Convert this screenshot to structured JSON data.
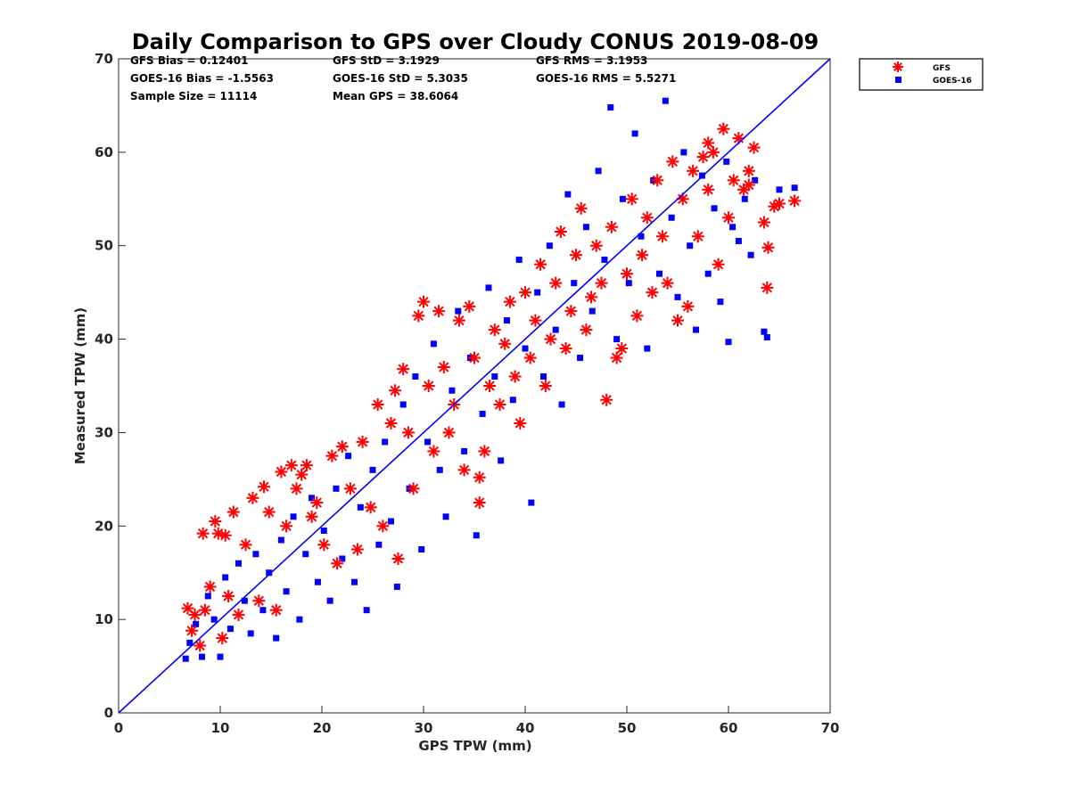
{
  "chart_data": {
    "type": "scatter",
    "title": "Daily Comparison to GPS over Cloudy CONUS 2019-08-09",
    "xlabel": "GPS TPW (mm)",
    "ylabel": "Measured TPW (mm)",
    "xlim": [
      0,
      70
    ],
    "ylim": [
      0,
      70
    ],
    "xticks": [
      0,
      10,
      20,
      30,
      40,
      50,
      60,
      70
    ],
    "yticks": [
      0,
      10,
      20,
      30,
      40,
      50,
      60,
      70
    ],
    "grid": false,
    "legend_position": "outside top-right",
    "reference_line": {
      "x": [
        0,
        70
      ],
      "y": [
        0,
        70
      ],
      "color": "#0000ff"
    },
    "stats": [
      "GFS Bias = 0.12401",
      "GFS StD = 3.1929",
      "GFS RMS = 3.1953",
      "GOES-16 Bias = -1.5563",
      "GOES-16 StD = 5.3035",
      "GOES-16 RMS = 5.5271",
      "Sample Size = 11114",
      "Mean GPS = 38.6064"
    ],
    "series": [
      {
        "name": "GFS",
        "marker": "asterisk",
        "color": "#ff0000",
        "points": [
          [
            6.8,
            11.2
          ],
          [
            7.2,
            8.8
          ],
          [
            7.5,
            10.5
          ],
          [
            8.0,
            7.2
          ],
          [
            8.3,
            19.2
          ],
          [
            8.5,
            11.0
          ],
          [
            9.0,
            13.5
          ],
          [
            9.5,
            20.5
          ],
          [
            9.8,
            19.2
          ],
          [
            10.2,
            8.0
          ],
          [
            10.5,
            19.0
          ],
          [
            10.8,
            12.5
          ],
          [
            11.3,
            21.5
          ],
          [
            11.8,
            10.5
          ],
          [
            12.5,
            18.0
          ],
          [
            13.2,
            23.0
          ],
          [
            13.8,
            12.0
          ],
          [
            14.3,
            24.2
          ],
          [
            14.8,
            21.5
          ],
          [
            15.5,
            11.0
          ],
          [
            16.0,
            25.8
          ],
          [
            16.5,
            20.0
          ],
          [
            17.0,
            26.5
          ],
          [
            17.5,
            24.0
          ],
          [
            18.0,
            25.5
          ],
          [
            18.5,
            26.5
          ],
          [
            19.0,
            21.0
          ],
          [
            19.5,
            22.5
          ],
          [
            20.2,
            18.0
          ],
          [
            21.0,
            27.5
          ],
          [
            21.5,
            16.0
          ],
          [
            22.0,
            28.5
          ],
          [
            22.8,
            24.0
          ],
          [
            23.5,
            17.5
          ],
          [
            24.0,
            29.0
          ],
          [
            24.8,
            22.0
          ],
          [
            25.5,
            33.0
          ],
          [
            26.0,
            20.0
          ],
          [
            26.8,
            31.0
          ],
          [
            27.2,
            34.5
          ],
          [
            27.5,
            16.5
          ],
          [
            28.0,
            36.8
          ],
          [
            28.5,
            30.0
          ],
          [
            29.0,
            24.0
          ],
          [
            29.5,
            42.5
          ],
          [
            30.0,
            44.0
          ],
          [
            30.5,
            35.0
          ],
          [
            31.0,
            28.0
          ],
          [
            31.5,
            43.0
          ],
          [
            32.0,
            37.0
          ],
          [
            32.5,
            30.0
          ],
          [
            33.0,
            33.0
          ],
          [
            33.5,
            42.0
          ],
          [
            34.0,
            26.0
          ],
          [
            34.5,
            43.5
          ],
          [
            35.0,
            38.0
          ],
          [
            35.5,
            22.5
          ],
          [
            35.5,
            25.2
          ],
          [
            36.0,
            28.0
          ],
          [
            36.5,
            35.0
          ],
          [
            37.0,
            41.0
          ],
          [
            37.5,
            33.0
          ],
          [
            38.0,
            39.5
          ],
          [
            38.5,
            44.0
          ],
          [
            39.0,
            36.0
          ],
          [
            39.5,
            31.0
          ],
          [
            40.0,
            45.0
          ],
          [
            40.5,
            38.0
          ],
          [
            41.0,
            42.0
          ],
          [
            41.5,
            48.0
          ],
          [
            42.0,
            35.0
          ],
          [
            42.5,
            40.0
          ],
          [
            43.0,
            46.0
          ],
          [
            43.5,
            51.5
          ],
          [
            44.0,
            39.0
          ],
          [
            44.5,
            43.0
          ],
          [
            45.0,
            49.0
          ],
          [
            45.5,
            54.0
          ],
          [
            46.0,
            41.0
          ],
          [
            46.5,
            44.5
          ],
          [
            47.0,
            50.0
          ],
          [
            47.5,
            46.0
          ],
          [
            48.0,
            33.5
          ],
          [
            48.5,
            52.0
          ],
          [
            49.0,
            38.0
          ],
          [
            49.5,
            39.0
          ],
          [
            50.0,
            47.0
          ],
          [
            50.5,
            55.0
          ],
          [
            51.0,
            42.5
          ],
          [
            51.5,
            49.0
          ],
          [
            52.0,
            53.0
          ],
          [
            52.5,
            45.0
          ],
          [
            53.0,
            57.0
          ],
          [
            53.5,
            51.0
          ],
          [
            54.0,
            46.0
          ],
          [
            54.5,
            59.0
          ],
          [
            55.0,
            42.0
          ],
          [
            55.5,
            55.0
          ],
          [
            56.0,
            43.5
          ],
          [
            56.5,
            58.0
          ],
          [
            57.0,
            51.0
          ],
          [
            57.5,
            59.5
          ],
          [
            58.0,
            56.0
          ],
          [
            58.5,
            60.0
          ],
          [
            59.0,
            48.0
          ],
          [
            59.5,
            62.5
          ],
          [
            60.0,
            53.0
          ],
          [
            60.5,
            57.0
          ],
          [
            61.0,
            61.5
          ],
          [
            61.5,
            56.0
          ],
          [
            62.0,
            58.0
          ],
          [
            62.5,
            60.5
          ],
          [
            63.5,
            52.5
          ],
          [
            63.8,
            45.5
          ],
          [
            63.9,
            49.8
          ],
          [
            64.5,
            54.2
          ],
          [
            65.0,
            54.5
          ],
          [
            66.5,
            54.8
          ],
          [
            62.0,
            56.5
          ],
          [
            58.0,
            61.0
          ]
        ]
      },
      {
        "name": "GOES-16",
        "marker": "square",
        "color": "#0000ff",
        "points": [
          [
            6.6,
            5.8
          ],
          [
            7.0,
            7.5
          ],
          [
            7.6,
            9.5
          ],
          [
            8.2,
            6.0
          ],
          [
            8.8,
            12.5
          ],
          [
            9.4,
            10.0
          ],
          [
            10.0,
            6.0
          ],
          [
            10.5,
            14.5
          ],
          [
            11.0,
            9.0
          ],
          [
            11.8,
            16.0
          ],
          [
            12.4,
            12.0
          ],
          [
            13.0,
            8.5
          ],
          [
            13.5,
            17.0
          ],
          [
            14.2,
            11.0
          ],
          [
            14.8,
            15.0
          ],
          [
            15.5,
            8.0
          ],
          [
            16.0,
            18.5
          ],
          [
            16.5,
            13.0
          ],
          [
            17.2,
            21.0
          ],
          [
            17.8,
            10.0
          ],
          [
            18.4,
            17.0
          ],
          [
            19.0,
            23.0
          ],
          [
            19.6,
            14.0
          ],
          [
            20.2,
            19.5
          ],
          [
            20.8,
            12.0
          ],
          [
            21.4,
            24.0
          ],
          [
            22.0,
            16.5
          ],
          [
            22.6,
            27.5
          ],
          [
            23.2,
            14.0
          ],
          [
            23.8,
            22.0
          ],
          [
            24.4,
            11.0
          ],
          [
            25.0,
            26.0
          ],
          [
            25.6,
            18.0
          ],
          [
            26.2,
            29.0
          ],
          [
            26.8,
            20.5
          ],
          [
            27.4,
            13.5
          ],
          [
            28.0,
            33.0
          ],
          [
            28.6,
            24.0
          ],
          [
            29.2,
            36.0
          ],
          [
            29.8,
            17.5
          ],
          [
            30.4,
            29.0
          ],
          [
            31.0,
            39.5
          ],
          [
            31.6,
            26.0
          ],
          [
            32.2,
            21.0
          ],
          [
            32.8,
            34.5
          ],
          [
            33.4,
            43.0
          ],
          [
            34.0,
            28.0
          ],
          [
            34.6,
            38.0
          ],
          [
            35.2,
            19.0
          ],
          [
            35.8,
            32.0
          ],
          [
            36.4,
            45.5
          ],
          [
            37.0,
            36.0
          ],
          [
            37.6,
            27.0
          ],
          [
            38.2,
            42.0
          ],
          [
            38.8,
            33.5
          ],
          [
            39.4,
            48.5
          ],
          [
            40.0,
            39.0
          ],
          [
            40.6,
            22.5
          ],
          [
            41.2,
            45.0
          ],
          [
            41.8,
            36.0
          ],
          [
            42.4,
            50.0
          ],
          [
            43.0,
            41.0
          ],
          [
            43.6,
            33.0
          ],
          [
            44.2,
            55.5
          ],
          [
            44.8,
            46.0
          ],
          [
            45.4,
            38.0
          ],
          [
            46.0,
            52.0
          ],
          [
            46.6,
            43.0
          ],
          [
            47.2,
            58.0
          ],
          [
            47.8,
            48.5
          ],
          [
            48.4,
            64.8
          ],
          [
            49.0,
            40.0
          ],
          [
            49.6,
            55.0
          ],
          [
            50.2,
            46.0
          ],
          [
            50.8,
            62.0
          ],
          [
            51.4,
            51.0
          ],
          [
            52.0,
            39.0
          ],
          [
            52.6,
            57.0
          ],
          [
            53.2,
            47.0
          ],
          [
            53.8,
            65.5
          ],
          [
            54.4,
            53.0
          ],
          [
            55.0,
            44.5
          ],
          [
            55.6,
            60.0
          ],
          [
            56.2,
            50.0
          ],
          [
            56.8,
            41.0
          ],
          [
            57.4,
            57.5
          ],
          [
            58.0,
            47.0
          ],
          [
            58.6,
            54.0
          ],
          [
            59.2,
            44.0
          ],
          [
            59.8,
            59.0
          ],
          [
            60.4,
            52.0
          ],
          [
            61.0,
            50.5
          ],
          [
            61.6,
            55.0
          ],
          [
            62.2,
            49.0
          ],
          [
            62.6,
            57.0
          ],
          [
            63.5,
            40.8
          ],
          [
            63.8,
            40.2
          ],
          [
            65.0,
            56.0
          ],
          [
            66.5,
            56.2
          ],
          [
            60.0,
            39.7
          ]
        ]
      }
    ]
  }
}
